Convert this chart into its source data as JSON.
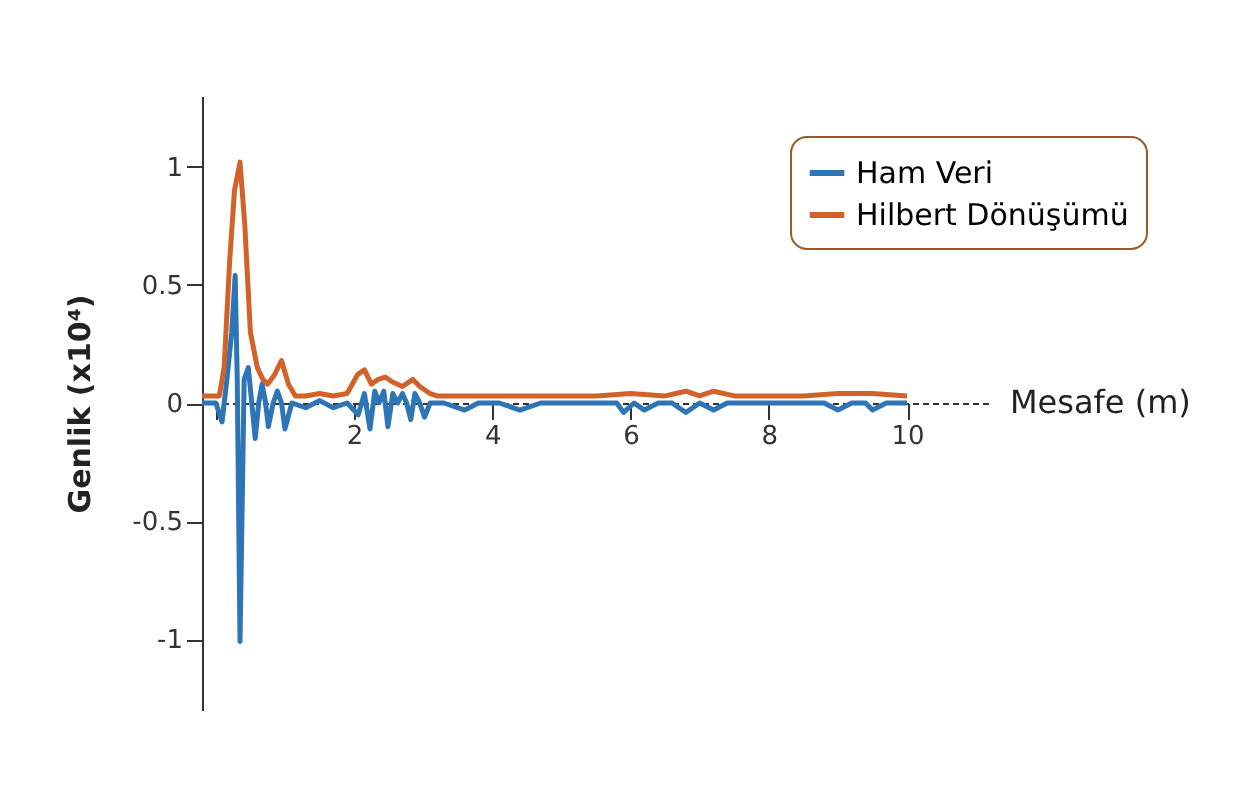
{
  "chart_data": {
    "type": "line",
    "ylabel": "Genlik (x10⁴)",
    "xlabel": "Mesafe  (m)",
    "xlim": [
      -0.2,
      11.2
    ],
    "ylim": [
      -1.3,
      1.3
    ],
    "xticks": [
      {
        "value": 0,
        "label": null
      },
      2,
      4,
      6,
      8,
      10
    ],
    "yticks": [
      -1,
      -0.5,
      0,
      0.5,
      1
    ],
    "legend": "top right",
    "line_style": "solid",
    "marker": "none",
    "series": [
      {
        "name": "Ham Veri",
        "color": "#2e75b6",
        "x": [
          -0.2,
          0.0,
          0.09,
          0.16,
          0.23,
          0.28,
          0.31,
          0.35,
          0.41,
          0.47,
          0.52,
          0.57,
          0.62,
          0.67,
          0.72,
          0.76,
          0.83,
          0.89,
          0.95,
          1.0,
          1.1,
          1.3,
          1.5,
          1.7,
          1.9,
          2.06,
          2.15,
          2.23,
          2.3,
          2.36,
          2.43,
          2.49,
          2.56,
          2.63,
          2.7,
          2.76,
          2.82,
          2.88,
          2.95,
          3.02,
          3.1,
          3.3,
          3.6,
          3.8,
          4.1,
          4.4,
          4.7,
          5.0,
          5.5,
          5.8,
          5.9,
          6.05,
          6.2,
          6.4,
          6.6,
          6.8,
          7.0,
          7.2,
          7.4,
          7.8,
          8.2,
          8.6,
          8.8,
          9.0,
          9.2,
          9.4,
          9.5,
          9.7,
          10.0
        ],
        "values": [
          0,
          0,
          -0.08,
          0.1,
          0.3,
          0.54,
          0.1,
          -1.01,
          0.1,
          0.15,
          0.0,
          -0.15,
          0.0,
          0.08,
          0.0,
          -0.1,
          0.0,
          0.05,
          0.0,
          -0.11,
          0.0,
          -0.02,
          0.01,
          -0.02,
          0.0,
          -0.05,
          0.04,
          -0.11,
          0.05,
          0.0,
          0.05,
          -0.1,
          0.04,
          0.0,
          0.04,
          0.0,
          -0.07,
          0.04,
          0.0,
          -0.06,
          0.0,
          0.0,
          -0.03,
          0.0,
          0.0,
          -0.03,
          0.0,
          0.0,
          0.0,
          0.0,
          -0.04,
          0.0,
          -0.03,
          0.0,
          0.0,
          -0.04,
          0.0,
          -0.03,
          0.0,
          0.0,
          0.0,
          0.0,
          0.0,
          -0.03,
          0.0,
          0.0,
          -0.03,
          0.0,
          0.0
        ]
      },
      {
        "name": "Hilbert Dönüşümü",
        "color": "#d0622a",
        "x": [
          -0.2,
          0.05,
          0.12,
          0.2,
          0.27,
          0.35,
          0.42,
          0.5,
          0.6,
          0.68,
          0.75,
          0.85,
          0.95,
          1.05,
          1.15,
          1.3,
          1.5,
          1.7,
          1.9,
          2.05,
          2.15,
          2.25,
          2.35,
          2.45,
          2.55,
          2.7,
          2.85,
          2.95,
          3.1,
          3.2,
          3.5,
          4.0,
          4.5,
          5.0,
          5.5,
          6.0,
          6.5,
          6.8,
          7.0,
          7.2,
          7.5,
          8.0,
          8.5,
          9.0,
          9.5,
          10.0
        ],
        "values": [
          0.03,
          0.03,
          0.15,
          0.6,
          0.9,
          1.02,
          0.75,
          0.3,
          0.15,
          0.1,
          0.08,
          0.12,
          0.18,
          0.08,
          0.03,
          0.03,
          0.04,
          0.03,
          0.04,
          0.12,
          0.14,
          0.08,
          0.1,
          0.11,
          0.09,
          0.07,
          0.1,
          0.07,
          0.04,
          0.03,
          0.03,
          0.03,
          0.03,
          0.03,
          0.03,
          0.04,
          0.03,
          0.05,
          0.03,
          0.05,
          0.03,
          0.03,
          0.03,
          0.04,
          0.04,
          0.03
        ]
      }
    ]
  }
}
